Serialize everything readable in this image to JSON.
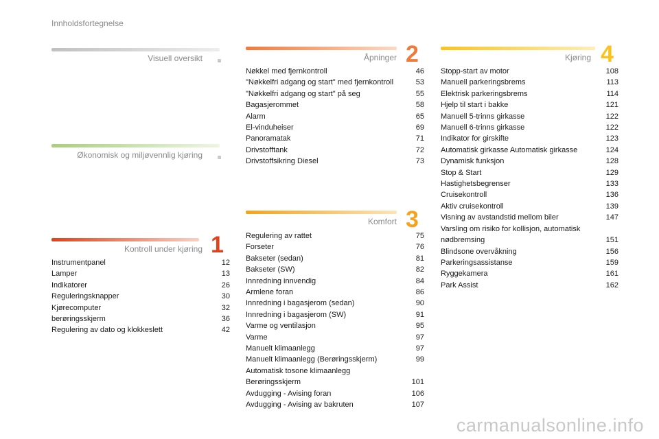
{
  "page_heading": "Innholdsfortegnelse",
  "colors": {
    "gray": "#b9b9b9",
    "green": "#a9cf7c",
    "red": "#e0421c",
    "orange_2": "#f07a3a",
    "orange_3": "#f5a21c",
    "yellow": "#f8c41c"
  },
  "sections": {
    "visuell": {
      "title": "Visuell oversikt"
    },
    "okonomisk": {
      "title": "Økonomisk og miljøvennlig kjøring"
    },
    "kontroll": {
      "title": "Kontroll under kjøring",
      "number": "1",
      "items": [
        {
          "label": "Instrumentpanel",
          "page": "12"
        },
        {
          "label": "Lamper",
          "page": "13"
        },
        {
          "label": "Indikatorer",
          "page": "26"
        },
        {
          "label": "Reguleringsknapper",
          "page": "30"
        },
        {
          "label": "Kjørecomputer",
          "page": "32"
        },
        {
          "label": "berøringsskjerm",
          "page": "36"
        },
        {
          "label": "Regulering av dato og klokkeslett",
          "page": "42"
        }
      ]
    },
    "apninger": {
      "title": "Åpninger",
      "number": "2",
      "items": [
        {
          "label": "Nøkkel med fjernkontroll",
          "page": "46"
        },
        {
          "label": "\"Nøkkelfri adgang og start\" med fjernkontroll",
          "page": "53"
        },
        {
          "label": "\"Nøkkelfri adgang og start\" på seg",
          "page": "55"
        },
        {
          "label": "Bagasjerommet",
          "page": "58"
        },
        {
          "label": "Alarm",
          "page": "65"
        },
        {
          "label": "El-vinduheiser",
          "page": "69"
        },
        {
          "label": "Panoramatak",
          "page": "71"
        },
        {
          "label": "Drivstofftank",
          "page": "72"
        },
        {
          "label": "Drivstoffsikring Diesel",
          "page": "73"
        }
      ]
    },
    "komfort": {
      "title": "Komfort",
      "number": "3",
      "items": [
        {
          "label": "Regulering av rattet",
          "page": "75"
        },
        {
          "label": "Forseter",
          "page": "76"
        },
        {
          "label": "Bakseter (sedan)",
          "page": "81"
        },
        {
          "label": "Bakseter (SW)",
          "page": "82"
        },
        {
          "label": "Innredning innvendig",
          "page": "84"
        },
        {
          "label": "Armlene foran",
          "page": "86"
        },
        {
          "label": "Innredning i bagasjerom (sedan)",
          "page": "90"
        },
        {
          "label": "Innredning i bagasjerom (SW)",
          "page": "91"
        },
        {
          "label": "Varme og ventilasjon",
          "page": "95"
        },
        {
          "label": "Varme",
          "page": "97"
        },
        {
          "label": "Manuelt klimaanlegg",
          "page": "97"
        },
        {
          "label": "Manuelt klimaanlegg (Berøringsskjerm)",
          "page": "99"
        },
        {
          "label": "Automatisk tosone klimaanlegg Berøringsskjerm",
          "page": "101"
        },
        {
          "label": "Avdugging - Avising foran",
          "page": "106"
        },
        {
          "label": "Avdugging - Avising av bakruten",
          "page": "107"
        }
      ]
    },
    "kjoring": {
      "title": "Kjøring",
      "number": "4",
      "items": [
        {
          "label": "Stopp-start av motor",
          "page": "108"
        },
        {
          "label": "Manuell parkeringsbrems",
          "page": "113"
        },
        {
          "label": "Elektrisk parkeringsbrems",
          "page": "114"
        },
        {
          "label": "Hjelp til start i bakke",
          "page": "121"
        },
        {
          "label": "Manuell 5-trinns girkasse",
          "page": "122"
        },
        {
          "label": "Manuell 6-trinns girkasse",
          "page": "122"
        },
        {
          "label": "Indikator for girskifte",
          "page": "123"
        },
        {
          "label": "Automatisk girkasse Automatisk girkasse",
          "page": "124"
        },
        {
          "label": "Dynamisk funksjon",
          "page": "128"
        },
        {
          "label": "Stop & Start",
          "page": "129"
        },
        {
          "label": "Hastighetsbegrenser",
          "page": "133"
        },
        {
          "label": "Cruisekontroll",
          "page": "136"
        },
        {
          "label": "Aktiv cruisekontroll",
          "page": "139"
        },
        {
          "label": "Visning av avstandstid mellom biler",
          "page": "147"
        },
        {
          "label": "Varsling om risiko for kollisjon, automatisk nødbremsing",
          "page": "151"
        },
        {
          "label": "Blindsone overvåkning",
          "page": "156"
        },
        {
          "label": "Parkeringsassistanse",
          "page": "159"
        },
        {
          "label": "Ryggekamera",
          "page": "161"
        },
        {
          "label": "Park Assist",
          "page": "162"
        }
      ]
    }
  },
  "watermark": "carmanualsonline.info"
}
